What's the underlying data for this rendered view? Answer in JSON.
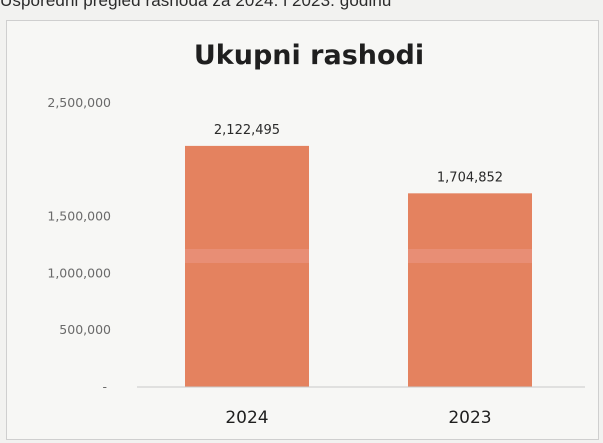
{
  "caption": "Usporedni pregled rashoda za 2024. i 2023. godinu",
  "chart_data": {
    "type": "bar",
    "title": "Ukupni rashodi",
    "xlabel": "",
    "ylabel": "",
    "categories": [
      "2024",
      "2023"
    ],
    "values": [
      2122495,
      1704852
    ],
    "data_labels": [
      "2,122,495",
      "1,704,852"
    ],
    "ylim": [
      0,
      2500000
    ],
    "yticks": [
      {
        "value": 0,
        "label": "-"
      },
      {
        "value": 500000,
        "label": "500,000"
      },
      {
        "value": 1000000,
        "label": "1,000,000"
      },
      {
        "value": 1500000,
        "label": "1,500,000"
      },
      {
        "value": 2500000,
        "label": "2,500,000"
      }
    ],
    "grid": false,
    "legend": "none",
    "colors": {
      "bar": "#e4825f",
      "axis": "#c9c9c9"
    }
  }
}
